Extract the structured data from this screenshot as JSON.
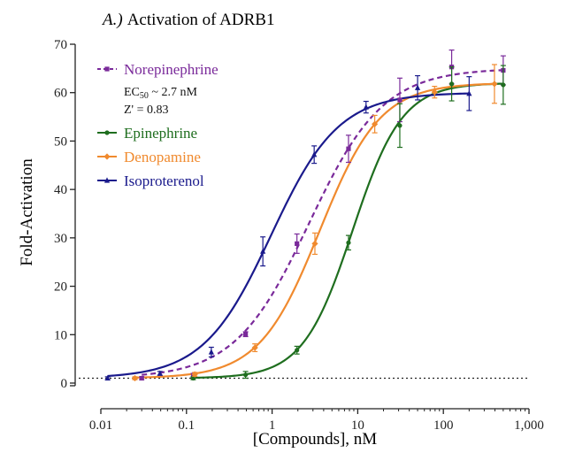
{
  "chart_data": {
    "type": "scatter",
    "title_prefix": "A.)",
    "title": "Activation of ADRB1",
    "xlabel": "[Compounds], nM",
    "ylabel": "Fold-Activation",
    "x_scale": "log",
    "xlim": [
      0.01,
      1000
    ],
    "ylim": [
      0,
      70
    ],
    "x_ticks": [
      0.01,
      0.1,
      1,
      10,
      100,
      1000
    ],
    "x_tick_labels": [
      "0.01",
      "0.1",
      "1",
      "10",
      "100",
      "1,000"
    ],
    "y_ticks": [
      0,
      10,
      20,
      30,
      40,
      50,
      60,
      70
    ],
    "y_tick_labels": [
      "0",
      "10",
      "20",
      "30",
      "40",
      "50",
      "60",
      "70"
    ],
    "grid": false,
    "legend_position": "top-left",
    "reference_line": {
      "y": 1,
      "style": "dotted",
      "color": "#222222"
    },
    "annotation": {
      "ec50_prefix": "EC",
      "ec50_sub": "50",
      "ec50_value": " ~ 2.7 nM",
      "z_prime": "Z' = 0.83"
    },
    "series": [
      {
        "name": "Norepinephrine",
        "color": "#7a2a9a",
        "marker": "square",
        "line": "dashed",
        "x": [
          0.03,
          0.12,
          0.49,
          1.95,
          7.8,
          31,
          125,
          500
        ],
        "y": [
          1.0,
          1.6,
          10.1,
          28.8,
          48.4,
          58.5,
          65.3,
          64.6
        ],
        "err": [
          0.3,
          0.4,
          0.5,
          2.0,
          2.8,
          4.5,
          3.5,
          3.0
        ],
        "fit": {
          "bottom": 1,
          "top": 65,
          "ec50": 2.7,
          "hill": 1.0
        }
      },
      {
        "name": "Epinephrine",
        "color": "#1f6e1f",
        "marker": "circle",
        "line": "solid",
        "x": [
          0.12,
          0.49,
          1.95,
          7.8,
          31,
          125,
          500
        ],
        "y": [
          1.0,
          1.7,
          6.8,
          29.0,
          53.2,
          61.8,
          61.6
        ],
        "err": [
          0.3,
          0.7,
          0.8,
          1.5,
          4.5,
          3.5,
          4.0
        ],
        "fit": {
          "bottom": 1,
          "top": 62,
          "ec50": 8.7,
          "hill": 1.5
        }
      },
      {
        "name": "Denopamine",
        "color": "#f08a2e",
        "marker": "diamond",
        "line": "solid",
        "x": [
          0.025,
          0.125,
          0.63,
          3.16,
          15.8,
          79,
          395
        ],
        "y": [
          1.0,
          1.8,
          7.3,
          28.8,
          53.5,
          60.1,
          61.8
        ],
        "err": [
          0.3,
          0.4,
          0.8,
          2.2,
          1.8,
          1.2,
          4.0
        ],
        "fit": {
          "bottom": 1,
          "top": 62,
          "ec50": 3.6,
          "hill": 1.23
        }
      },
      {
        "name": "Isoproterenol",
        "color": "#1a1a8c",
        "marker": "triangle",
        "line": "solid",
        "x": [
          0.012,
          0.049,
          0.195,
          0.78,
          3.1,
          12.5,
          50,
          200
        ],
        "y": [
          1.0,
          2.0,
          6.4,
          27.2,
          47.2,
          57.0,
          61.0,
          59.8
        ],
        "err": [
          0.3,
          0.4,
          1.0,
          3.0,
          1.8,
          1.2,
          2.5,
          3.5
        ],
        "fit": {
          "bottom": 1,
          "top": 60,
          "ec50": 0.97,
          "hill": 1.1
        }
      }
    ]
  }
}
